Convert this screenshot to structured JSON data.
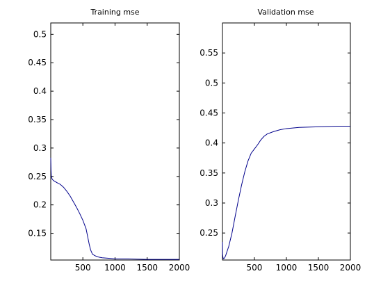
{
  "chart_data": [
    {
      "type": "line",
      "title": "Training mse",
      "xlabel": "",
      "ylabel": "",
      "xlim": [
        1,
        2000
      ],
      "ylim": [
        0.103,
        0.52
      ],
      "grid": false,
      "xticks": [
        500,
        1000,
        1500,
        2000
      ],
      "xtick_labels": [
        "500",
        "1000",
        "1500",
        "2000"
      ],
      "yticks": [
        0.15,
        0.2,
        0.25,
        0.3,
        0.35,
        0.4,
        0.45,
        0.5
      ],
      "ytick_labels": [
        "0.15",
        "0.2",
        "0.25",
        "0.3",
        "0.35",
        "0.4",
        "0.45",
        "0.5"
      ],
      "series": [
        {
          "color": "#00008b",
          "x": [
            1,
            5,
            10,
            20,
            40,
            70,
            100,
            150,
            200,
            250,
            300,
            350,
            400,
            450,
            500,
            550,
            600,
            620,
            650,
            700,
            750,
            800,
            900,
            1000,
            1200,
            1500,
            1800,
            2000
          ],
          "y": [
            0.283,
            0.262,
            0.25,
            0.246,
            0.243,
            0.241,
            0.239,
            0.236,
            0.231,
            0.224,
            0.216,
            0.206,
            0.196,
            0.185,
            0.173,
            0.158,
            0.13,
            0.121,
            0.113,
            0.11,
            0.108,
            0.107,
            0.106,
            0.105,
            0.105,
            0.104,
            0.104,
            0.104
          ]
        }
      ]
    },
    {
      "type": "line",
      "title": "Validation mse",
      "xlabel": "",
      "ylabel": "",
      "xlim": [
        1,
        2000
      ],
      "ylim": [
        0.205,
        0.6
      ],
      "grid": false,
      "xticks": [
        500,
        1000,
        1500,
        2000
      ],
      "xtick_labels": [
        "500",
        "1000",
        "1500",
        "2000"
      ],
      "yticks": [
        0.25,
        0.3,
        0.35,
        0.4,
        0.45,
        0.5,
        0.55
      ],
      "ytick_labels": [
        "0.25",
        "0.3",
        "0.35",
        "0.4",
        "0.45",
        "0.5",
        "0.55"
      ],
      "series": [
        {
          "color": "#00008b",
          "x": [
            1,
            3,
            8,
            15,
            30,
            50,
            100,
            150,
            200,
            250,
            300,
            350,
            400,
            450,
            500,
            550,
            600,
            650,
            700,
            800,
            900,
            1000,
            1200,
            1500,
            1800,
            2000
          ],
          "y": [
            0.235,
            0.215,
            0.21,
            0.207,
            0.208,
            0.212,
            0.228,
            0.25,
            0.278,
            0.305,
            0.33,
            0.352,
            0.37,
            0.383,
            0.39,
            0.397,
            0.405,
            0.411,
            0.415,
            0.419,
            0.422,
            0.424,
            0.426,
            0.427,
            0.428,
            0.428
          ]
        }
      ]
    }
  ]
}
